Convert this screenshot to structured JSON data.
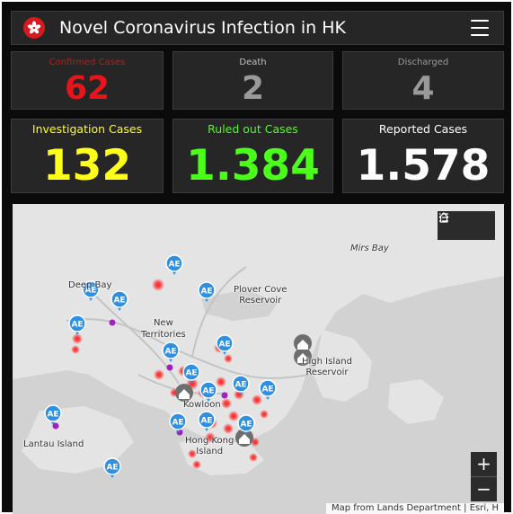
{
  "header": {
    "title": "Novel Coronavirus Infection in HK",
    "logo_icon": "hksar-bauhinia-icon",
    "menu_icon": "hamburger-menu-icon"
  },
  "stats_row1": [
    {
      "label": "Confirmed Cases",
      "value": "62",
      "color": "#e8141b",
      "label_color": "#c01a1a"
    },
    {
      "label": "Death",
      "value": "2",
      "color": "#9a9a9a",
      "label_color": "#bfbfbf"
    },
    {
      "label": "Discharged",
      "value": "4",
      "color": "#9a9a9a",
      "label_color": "#9a9a9a"
    }
  ],
  "stats_row2": [
    {
      "label": "Investigation Cases",
      "value": "132",
      "color": "#ffff1a",
      "label_color": "#ffff1a"
    },
    {
      "label": "Ruled out Cases",
      "value": "1.384",
      "color": "#4cff1a",
      "label_color": "#4cff1a"
    },
    {
      "label": "Reported Cases",
      "value": "1.578",
      "color": "#ffffff",
      "label_color": "#ffffff"
    }
  ],
  "map": {
    "places": [
      {
        "name": "Mirs Bay",
        "italic": true
      },
      {
        "name": "Deep Bay",
        "italic": false
      },
      {
        "name": "Plover Cove\nReservoir",
        "italic": false
      },
      {
        "name": "New\nTerritories",
        "italic": false
      },
      {
        "name": "High Island\nReservoir",
        "italic": false
      },
      {
        "name": "Kowloon",
        "italic": false
      },
      {
        "name": "Lantau Island",
        "italic": false
      },
      {
        "name": "Hong Kong\nIsland",
        "italic": false
      }
    ],
    "marker_label": "AE",
    "attribution": "Map from Lands Department | Esri, H",
    "tools": [
      "home-icon",
      "layer-list-icon"
    ],
    "zoom_in": "+",
    "zoom_out": "−",
    "colors": {
      "land": "#e4e4e4",
      "water": "#d2d2d2",
      "marker": "#2f8fe0",
      "hotspot": "#ff1a1a",
      "pin": "#a020c0"
    }
  }
}
